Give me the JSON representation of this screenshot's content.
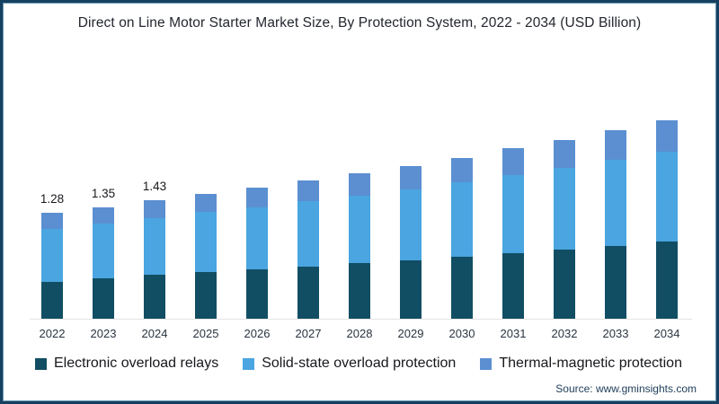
{
  "title": "Direct on Line Motor Starter Market Size, By Protection System, 2022 - 2034 (USD Billion)",
  "source_label": "Source: www.gminsights.com",
  "legend": [
    {
      "label": "Electronic overload relays",
      "color": "#114e64"
    },
    {
      "label": "Solid-state overload protection",
      "color": "#4aa5e0"
    },
    {
      "label": "Thermal-magnetic protection",
      "color": "#5b8fd1"
    }
  ],
  "chart_data": {
    "type": "bar",
    "stacked": true,
    "title": "Direct on Line Motor Starter Market Size, By Protection System, 2022 - 2034 (USD Billion)",
    "unit": "USD Billion",
    "categories": [
      "2022",
      "2023",
      "2024",
      "2025",
      "2026",
      "2027",
      "2028",
      "2029",
      "2030",
      "2031",
      "2032",
      "2033",
      "2034"
    ],
    "series": [
      {
        "name": "Electronic overload relays",
        "color": "#114e64",
        "values": [
          0.45,
          0.49,
          0.53,
          0.57,
          0.6,
          0.63,
          0.67,
          0.71,
          0.75,
          0.79,
          0.84,
          0.88,
          0.94
        ]
      },
      {
        "name": "Solid-state overload protection",
        "color": "#4aa5e0",
        "values": [
          0.64,
          0.66,
          0.69,
          0.72,
          0.75,
          0.79,
          0.82,
          0.86,
          0.9,
          0.95,
          0.99,
          1.04,
          1.08
        ]
      },
      {
        "name": "Thermal-magnetic protection",
        "color": "#5b8fd1",
        "values": [
          0.19,
          0.2,
          0.21,
          0.22,
          0.24,
          0.25,
          0.27,
          0.28,
          0.3,
          0.32,
          0.33,
          0.36,
          0.38
        ]
      }
    ],
    "totals": [
      1.28,
      1.35,
      1.43,
      1.51,
      1.59,
      1.67,
      1.76,
      1.85,
      1.95,
      2.06,
      2.16,
      2.28,
      2.4
    ],
    "data_labels": [
      "1.28",
      "1.35",
      "1.43",
      "",
      "",
      "",
      "",
      "",
      "",
      "",
      "",
      "",
      ""
    ],
    "xlabel": "",
    "ylabel": "",
    "ylim": [
      0,
      2.6
    ],
    "grid": false,
    "y_axis_visible": false,
    "legend_position": "bottom"
  }
}
